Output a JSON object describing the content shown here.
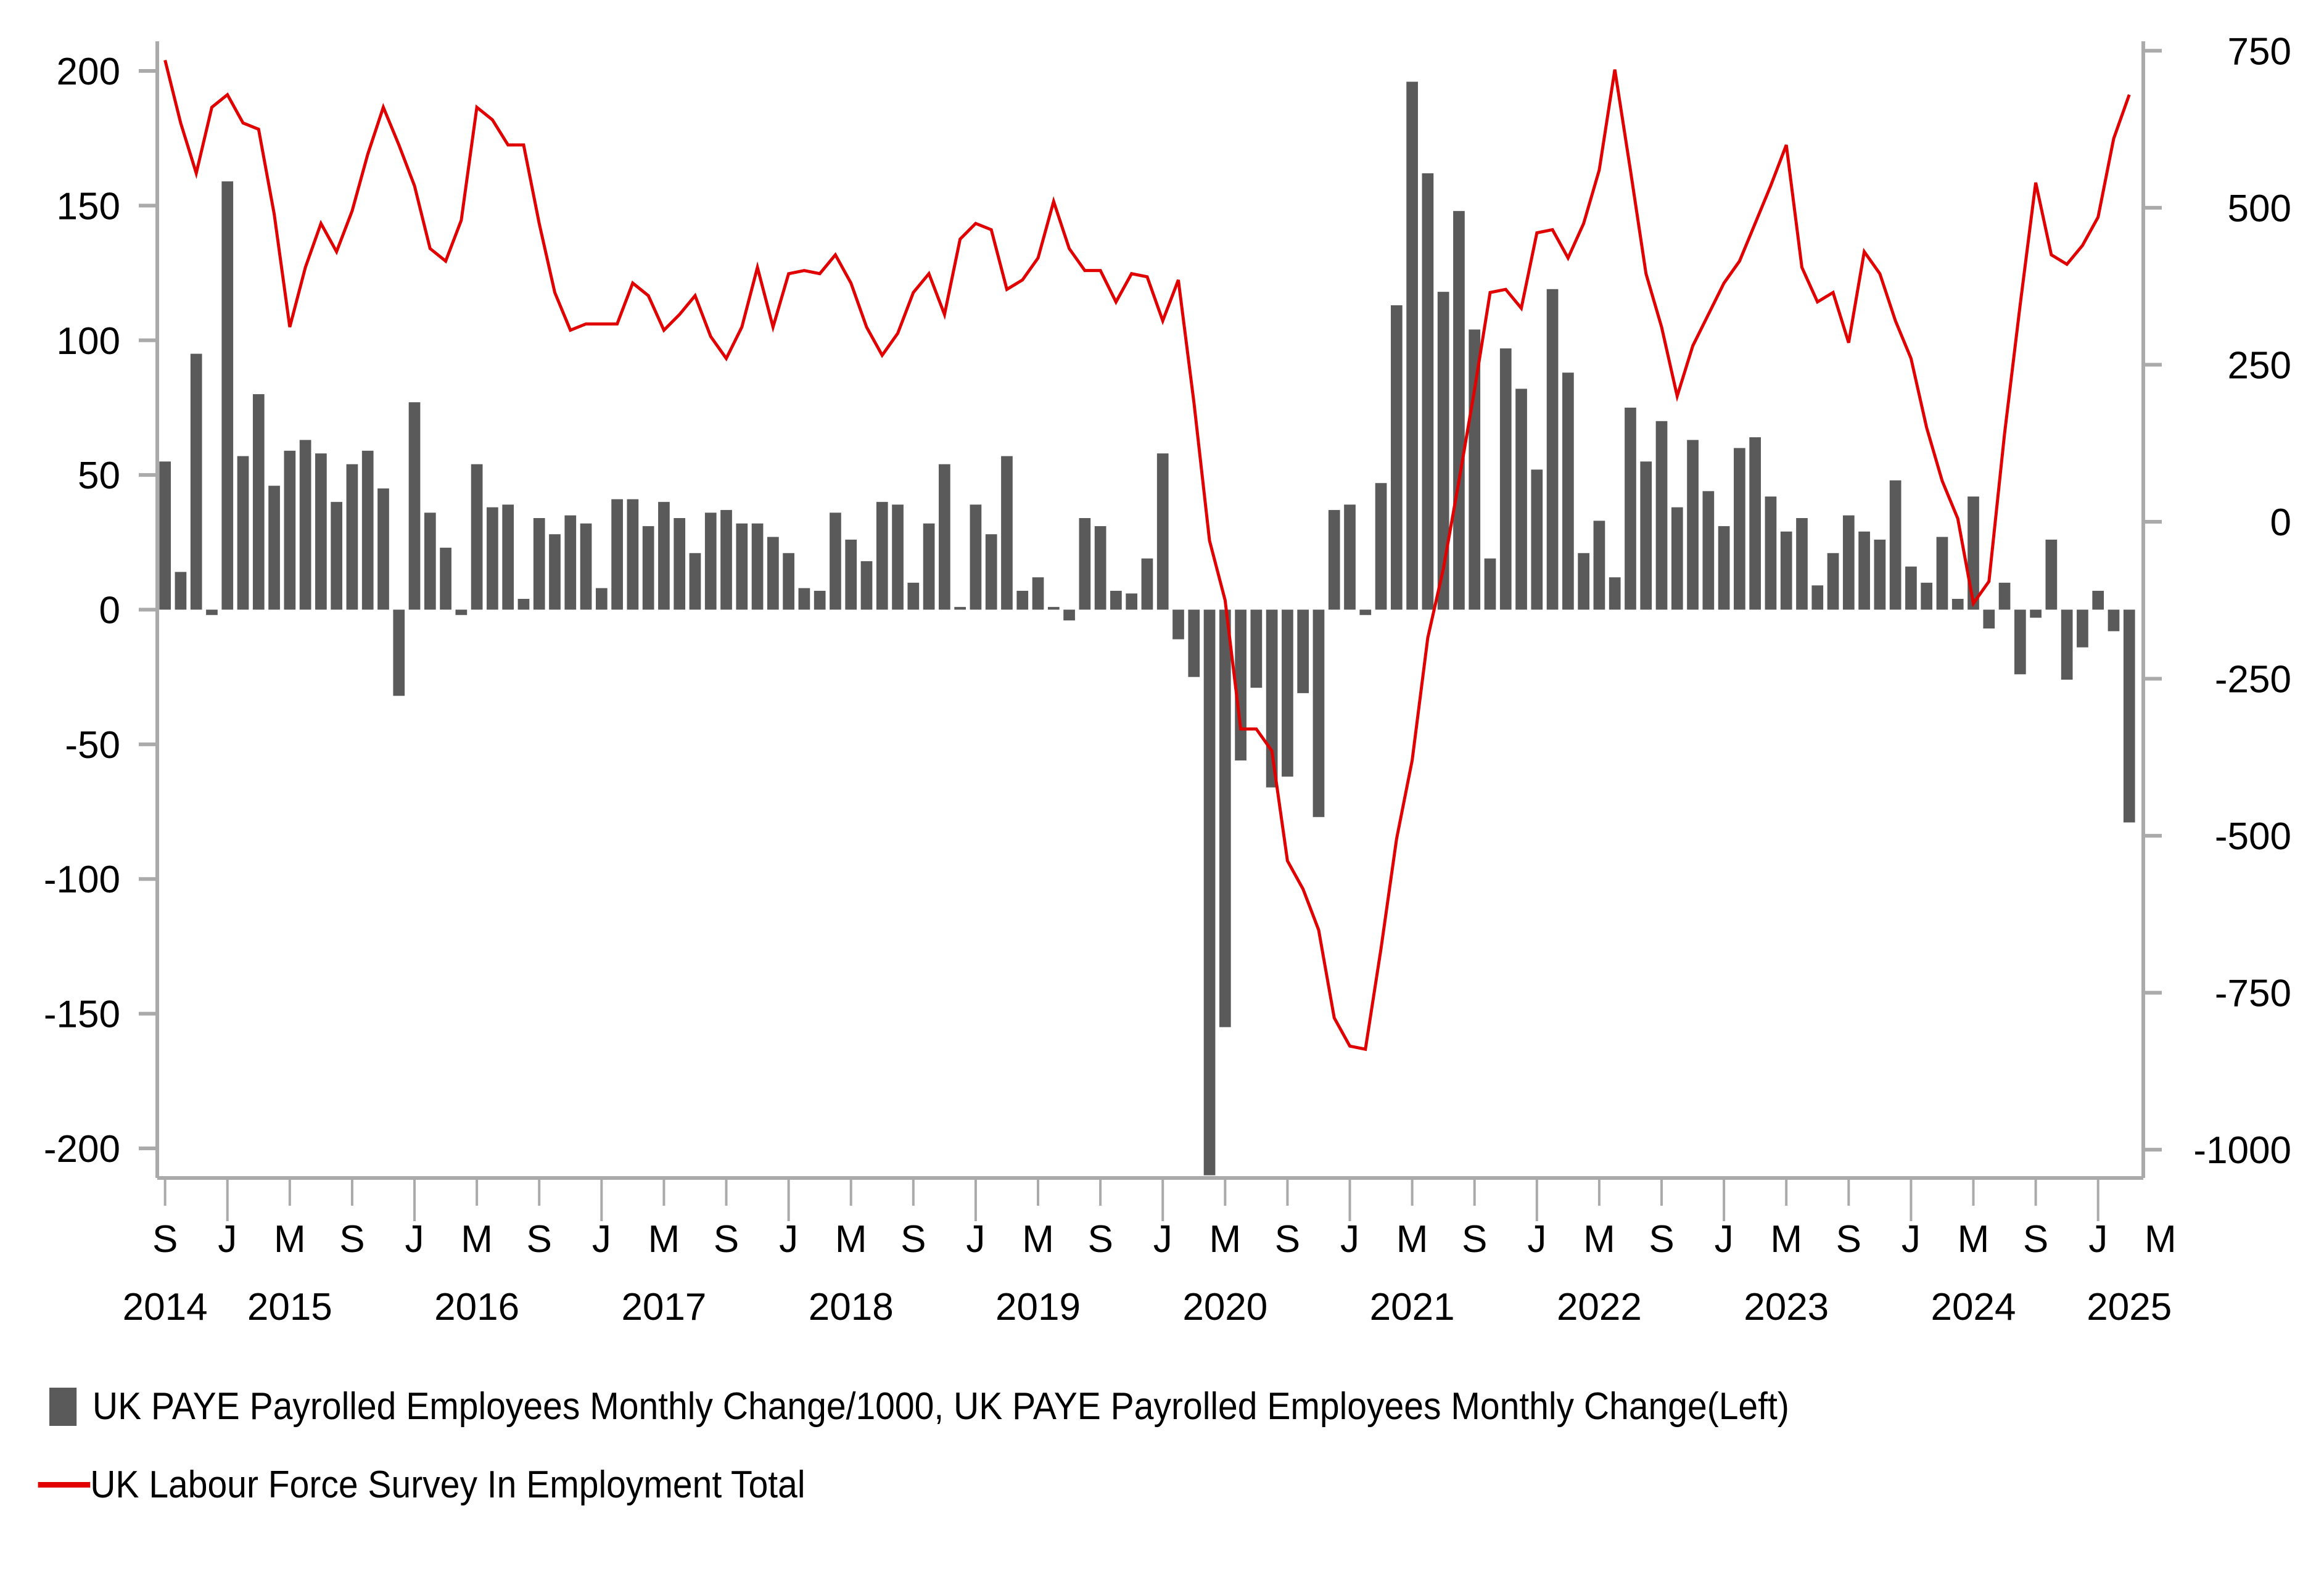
{
  "chart_data": {
    "type": "bar",
    "title": "",
    "xlabel": "",
    "ylabel": "",
    "left_axis": {
      "ylim": [
        -211,
        211
      ],
      "ticks": [
        200,
        150,
        100,
        50,
        0,
        -50,
        -100,
        -150,
        -200
      ],
      "tick_labels": [
        "200",
        "150",
        "100",
        "50",
        "0",
        "-50",
        "-100",
        "-150",
        "-200"
      ]
    },
    "right_axis": {
      "ylim": [
        -1045,
        765
      ],
      "ticks": [
        750,
        500,
        250,
        0,
        -250,
        -500,
        -750,
        -1000
      ],
      "tick_labels": [
        "750",
        "500",
        "250",
        "0",
        "-250",
        "-500",
        "-750",
        "-1000"
      ]
    },
    "x_start": "2014-09",
    "x_end": "2025-03",
    "x_tick_labels": [
      "S",
      "J",
      "M",
      "S",
      "J",
      "M",
      "S",
      "J",
      "M",
      "S",
      "J",
      "M",
      "S",
      "J",
      "M",
      "S",
      "J",
      "M",
      "S",
      "J",
      "M",
      "S",
      "J",
      "M",
      "S",
      "J",
      "M",
      "S",
      "J",
      "M",
      "S",
      "J",
      "M"
    ],
    "year_labels": [
      {
        "label": "2014",
        "month_index": 0
      },
      {
        "label": "2015",
        "month_index": 8
      },
      {
        "label": "2016",
        "month_index": 20
      },
      {
        "label": "2017",
        "month_index": 32
      },
      {
        "label": "2018",
        "month_index": 44
      },
      {
        "label": "2019",
        "month_index": 56
      },
      {
        "label": "2020",
        "month_index": 68
      },
      {
        "label": "2021",
        "month_index": 80
      },
      {
        "label": "2022",
        "month_index": 92
      },
      {
        "label": "2023",
        "month_index": 104
      },
      {
        "label": "2024",
        "month_index": 116
      },
      {
        "label": "2025",
        "month_index": 126
      }
    ],
    "grid": false,
    "legend_position": "bottom",
    "series": [
      {
        "name": "UK PAYE Payrolled Employees Monthly Change/1000, UK PAYE Payrolled Employees Monthly Change(Left)",
        "type": "bar",
        "axis": "left",
        "color": "#5a5a5a",
        "values": [
          55,
          14,
          95,
          -2,
          159,
          57,
          80,
          46,
          59,
          63,
          58,
          40,
          54,
          59,
          45,
          -32,
          77,
          36,
          23,
          -2,
          54,
          38,
          39,
          4,
          34,
          28,
          35,
          32,
          8,
          41,
          41,
          31,
          40,
          34,
          21,
          36,
          37,
          32,
          32,
          27,
          21,
          8,
          7,
          36,
          26,
          18,
          40,
          39,
          10,
          32,
          54,
          1,
          39,
          28,
          57,
          7,
          12,
          1,
          -4,
          34,
          31,
          7,
          6,
          19,
          58,
          -11,
          -25,
          -210,
          -155,
          -56,
          -29,
          -66,
          -62,
          -31,
          -77,
          37,
          39,
          -2,
          47,
          113,
          196,
          162,
          118,
          148,
          104,
          19,
          97,
          82,
          52,
          119,
          88,
          21,
          33,
          12,
          75,
          55,
          70,
          38,
          63,
          44,
          31,
          60,
          64,
          42,
          29,
          34,
          9,
          21,
          35,
          29,
          26,
          48,
          16,
          10,
          27,
          4,
          42,
          -7,
          10,
          -24,
          -3,
          26,
          -26,
          -14,
          7,
          -8,
          -79
        ]
      },
      {
        "name": "UK Labour Force Survey In Employment Total",
        "type": "line",
        "axis": "right",
        "color": "#e00000",
        "values": [
          735,
          635,
          555,
          660,
          680,
          635,
          625,
          490,
          310,
          405,
          475,
          430,
          495,
          585,
          660,
          600,
          535,
          435,
          415,
          480,
          660,
          640,
          600,
          600,
          475,
          365,
          305,
          315,
          315,
          315,
          380,
          360,
          305,
          330,
          360,
          295,
          260,
          310,
          405,
          310,
          395,
          400,
          395,
          425,
          380,
          310,
          265,
          300,
          365,
          395,
          330,
          450,
          475,
          465,
          370,
          385,
          420,
          510,
          435,
          400,
          400,
          350,
          395,
          390,
          320,
          385,
          190,
          -30,
          -125,
          -330,
          -330,
          -365,
          -540,
          -585,
          -650,
          -790,
          -835,
          -840,
          -680,
          -505,
          -380,
          -185,
          -75,
          65,
          210,
          365,
          370,
          340,
          460,
          465,
          420,
          475,
          560,
          720,
          560,
          395,
          310,
          200,
          280,
          330,
          380,
          415,
          475,
          535,
          600,
          405,
          350,
          365,
          285,
          430,
          395,
          320,
          260,
          150,
          65,
          5,
          -130,
          -95,
          140,
          345,
          540,
          425,
          410,
          440,
          485,
          610,
          680
        ]
      }
    ]
  },
  "legend": {
    "bar_label": "UK PAYE Payrolled Employees Monthly Change/1000, UK PAYE Payrolled Employees Monthly Change(Left)",
    "line_label": "UK Labour Force Survey In Employment Total"
  }
}
